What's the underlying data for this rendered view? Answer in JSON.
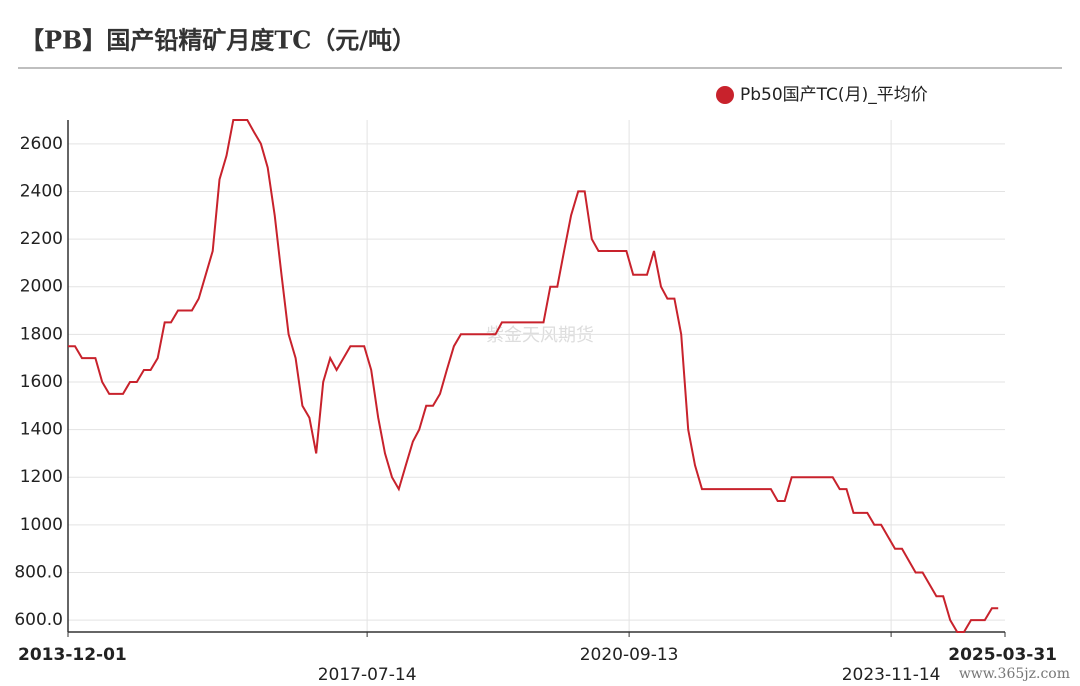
{
  "chart_data": {
    "type": "line",
    "title": "【PB】国产铅精矿月度TC（元/吨）",
    "watermark": "紫金天风期货",
    "footer": "www.365jz.com",
    "x": [
      "2013-12-01",
      "2014-01-01",
      "2014-02-01",
      "2014-04-01",
      "2014-05-01",
      "2014-06-01",
      "2014-08-01",
      "2014-09-01",
      "2014-10-01",
      "2014-11-01",
      "2014-12-01",
      "2015-01-01",
      "2015-02-01",
      "2015-03-01",
      "2015-04-01",
      "2015-06-01",
      "2015-07-01",
      "2015-08-01",
      "2015-09-01",
      "2015-10-01",
      "2015-11-01",
      "2015-12-01",
      "2016-02-01",
      "2016-03-01",
      "2016-04-01",
      "2016-05-01",
      "2016-06-01",
      "2016-07-01",
      "2016-08-01",
      "2016-09-01",
      "2016-10-01",
      "2016-11-01",
      "2016-12-01",
      "2017-01-01",
      "2017-02-01",
      "2017-03-01",
      "2017-05-01",
      "2017-07-01",
      "2017-08-01",
      "2017-09-01",
      "2017-10-01",
      "2017-11-01",
      "2017-12-01",
      "2018-01-01",
      "2018-02-01",
      "2018-03-01",
      "2018-04-01",
      "2018-05-01",
      "2018-06-01",
      "2018-07-01",
      "2018-08-01",
      "2018-09-01",
      "2019-02-01",
      "2019-03-01",
      "2019-09-01",
      "2019-10-01",
      "2019-11-01",
      "2019-12-01",
      "2020-01-01",
      "2020-02-01",
      "2020-03-01",
      "2020-04-01",
      "2020-05-01",
      "2020-09-01",
      "2020-10-01",
      "2020-12-01",
      "2021-01-01",
      "2021-02-01",
      "2021-03-01",
      "2021-04-01",
      "2021-05-01",
      "2021-06-01",
      "2021-07-01",
      "2021-08-01",
      "2022-06-01",
      "2022-07-01",
      "2022-08-01",
      "2022-09-01",
      "2023-03-01",
      "2023-04-01",
      "2023-05-01",
      "2023-06-01",
      "2023-08-01",
      "2023-09-01",
      "2023-10-01",
      "2023-12-01",
      "2024-01-01",
      "2024-03-01",
      "2024-04-01",
      "2024-06-01",
      "2024-07-01",
      "2024-08-01",
      "2024-09-01",
      "2024-10-01",
      "2024-11-01",
      "2025-01-01",
      "2025-02-01",
      "2025-03-01"
    ],
    "series": [
      {
        "name": "Pb50国产TC(月)_平均价",
        "color": "#c8222c",
        "values": [
          1750,
          1750,
          1700,
          1700,
          1600,
          1550,
          1550,
          1600,
          1600,
          1650,
          1650,
          1700,
          1850,
          1850,
          1900,
          1900,
          1950,
          2050,
          2150,
          2450,
          2550,
          2700,
          2700,
          2650,
          2600,
          2500,
          2300,
          2050,
          1800,
          1700,
          1500,
          1450,
          1300,
          1600,
          1700,
          1650,
          1750,
          1750,
          1650,
          1450,
          1300,
          1200,
          1150,
          1250,
          1350,
          1400,
          1500,
          1500,
          1550,
          1650,
          1750,
          1800,
          1800,
          1850,
          1850,
          2000,
          2000,
          2150,
          2300,
          2400,
          2400,
          2200,
          2150,
          2150,
          2050,
          2050,
          2150,
          2000,
          1950,
          1950,
          1800,
          1400,
          1250,
          1150,
          1150,
          1100,
          1100,
          1200,
          1200,
          1150,
          1150,
          1050,
          1050,
          1000,
          1000,
          900,
          900,
          800,
          800,
          700,
          700,
          600,
          550,
          550,
          600,
          600,
          650,
          650
        ]
      }
    ],
    "xlim": [
      "2013-12-01",
      "2025-03-31"
    ],
    "xticks": [
      "2013-12-01",
      "2017-07-14",
      "2020-09-13",
      "2023-11-14",
      "2025-03-31"
    ],
    "ylim": [
      550,
      2700
    ],
    "yticks": [
      {
        "value": 600,
        "label": "600.0"
      },
      {
        "value": 800,
        "label": "800.0"
      },
      1000,
      1200,
      1400,
      1600,
      1800,
      2000,
      2200,
      2400,
      2600
    ],
    "grid": true
  }
}
